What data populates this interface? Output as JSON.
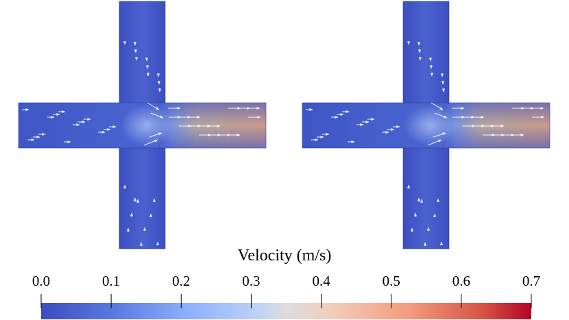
{
  "figure": {
    "panels": [
      {
        "name": "left-cross-junction"
      },
      {
        "name": "right-cross-junction"
      }
    ],
    "colors": {
      "background": "#ffffff",
      "arrow": "#f4f6ff",
      "cmap_low": "#3b4cc0",
      "cmap_mid": "#dddddd",
      "cmap_high": "#b40426"
    }
  },
  "colorbar": {
    "title": "Velocity (m/s)",
    "range": [
      0.0,
      0.7
    ],
    "colormap": "coolwarm",
    "ticks": [
      "0.0",
      "0.1",
      "0.2",
      "0.3",
      "0.4",
      "0.5",
      "0.6",
      "0.7"
    ]
  }
}
